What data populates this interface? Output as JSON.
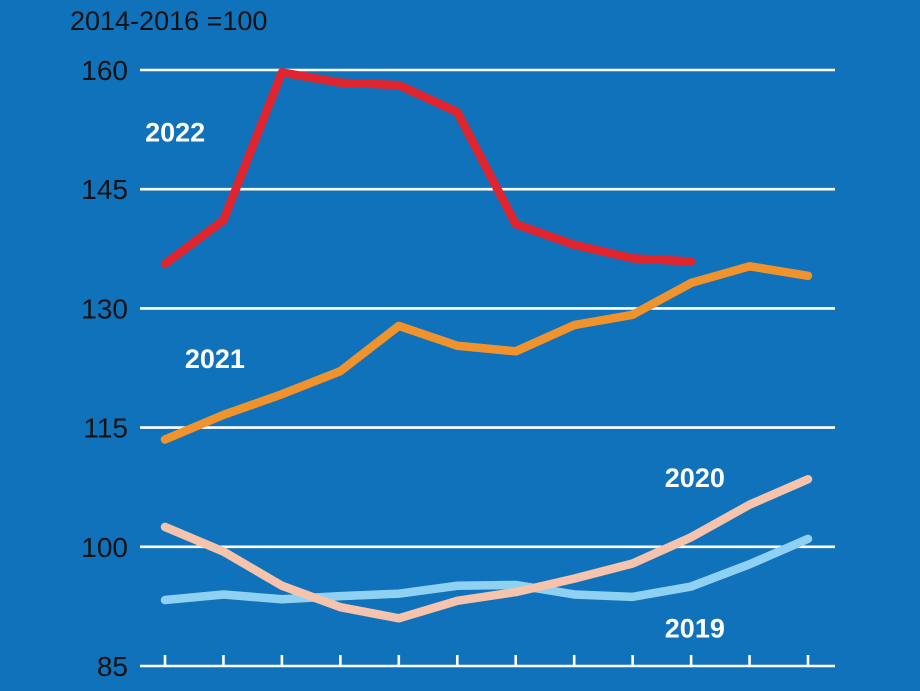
{
  "chart_data": {
    "type": "line",
    "axis_note": "2014-2016 =100",
    "y_ticks": [
      85,
      100,
      115,
      130,
      145,
      160
    ],
    "ylim": [
      85,
      160
    ],
    "x_tick_count": 12,
    "grid": true,
    "legend_position": "inline-labels",
    "background_color": "#1072BA",
    "gridline_color": "#FFFFFF",
    "axis_text_color": "#121212",
    "label_text_color": "#FFFFFF",
    "series": [
      {
        "name": "2022",
        "color": "#E0252F",
        "values": [
          135.6,
          141.1,
          159.7,
          158.4,
          158.1,
          154.7,
          140.6,
          138.0,
          136.3,
          135.9
        ],
        "label_anchor": {
          "month": 0.66,
          "value": 151.0
        }
      },
      {
        "name": "2021",
        "color": "#F0932C",
        "values": [
          113.5,
          116.6,
          119.2,
          122.1,
          127.8,
          125.3,
          124.6,
          127.9,
          129.2,
          133.2,
          135.3,
          134.1
        ],
        "label_anchor": {
          "month": 1.34,
          "value": 122.5
        }
      },
      {
        "name": "2020",
        "color": "#F6C3AC",
        "values": [
          102.5,
          99.4,
          95.1,
          92.4,
          91.0,
          93.2,
          94.3,
          96.0,
          97.9,
          101.2,
          105.3,
          108.5
        ],
        "label_anchor": {
          "month": 9.55,
          "value": 107.5
        }
      },
      {
        "name": "2019",
        "color": "#8FD1F2",
        "values": [
          93.3,
          94.0,
          93.4,
          93.8,
          94.1,
          95.1,
          95.2,
          94.0,
          93.7,
          95.0,
          97.8,
          101.0
        ],
        "label_anchor": {
          "month": 9.55,
          "value": 88.6
        }
      }
    ]
  }
}
